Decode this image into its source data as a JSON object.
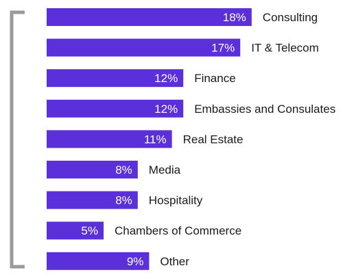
{
  "chart_data": {
    "type": "bar",
    "orientation": "horizontal",
    "categories": [
      "Consulting",
      "IT & Telecom",
      "Finance",
      "Embassies and Consulates",
      "Real Estate",
      "Media",
      "Hospitality",
      "Chambers of Commerce",
      "Other"
    ],
    "values": [
      18,
      17,
      12,
      12,
      11,
      8,
      8,
      5,
      9
    ],
    "value_labels": [
      "18%",
      "17%",
      "12%",
      "12%",
      "11%",
      "8%",
      "8%",
      "5%",
      "9%"
    ],
    "unit": "%",
    "bar_color": "#5b2fd9",
    "bracket_color": "#9a9a9a",
    "title": "",
    "xlabel": "",
    "ylabel": "",
    "xlim": [
      0,
      18
    ],
    "grid": false,
    "legend": false
  }
}
